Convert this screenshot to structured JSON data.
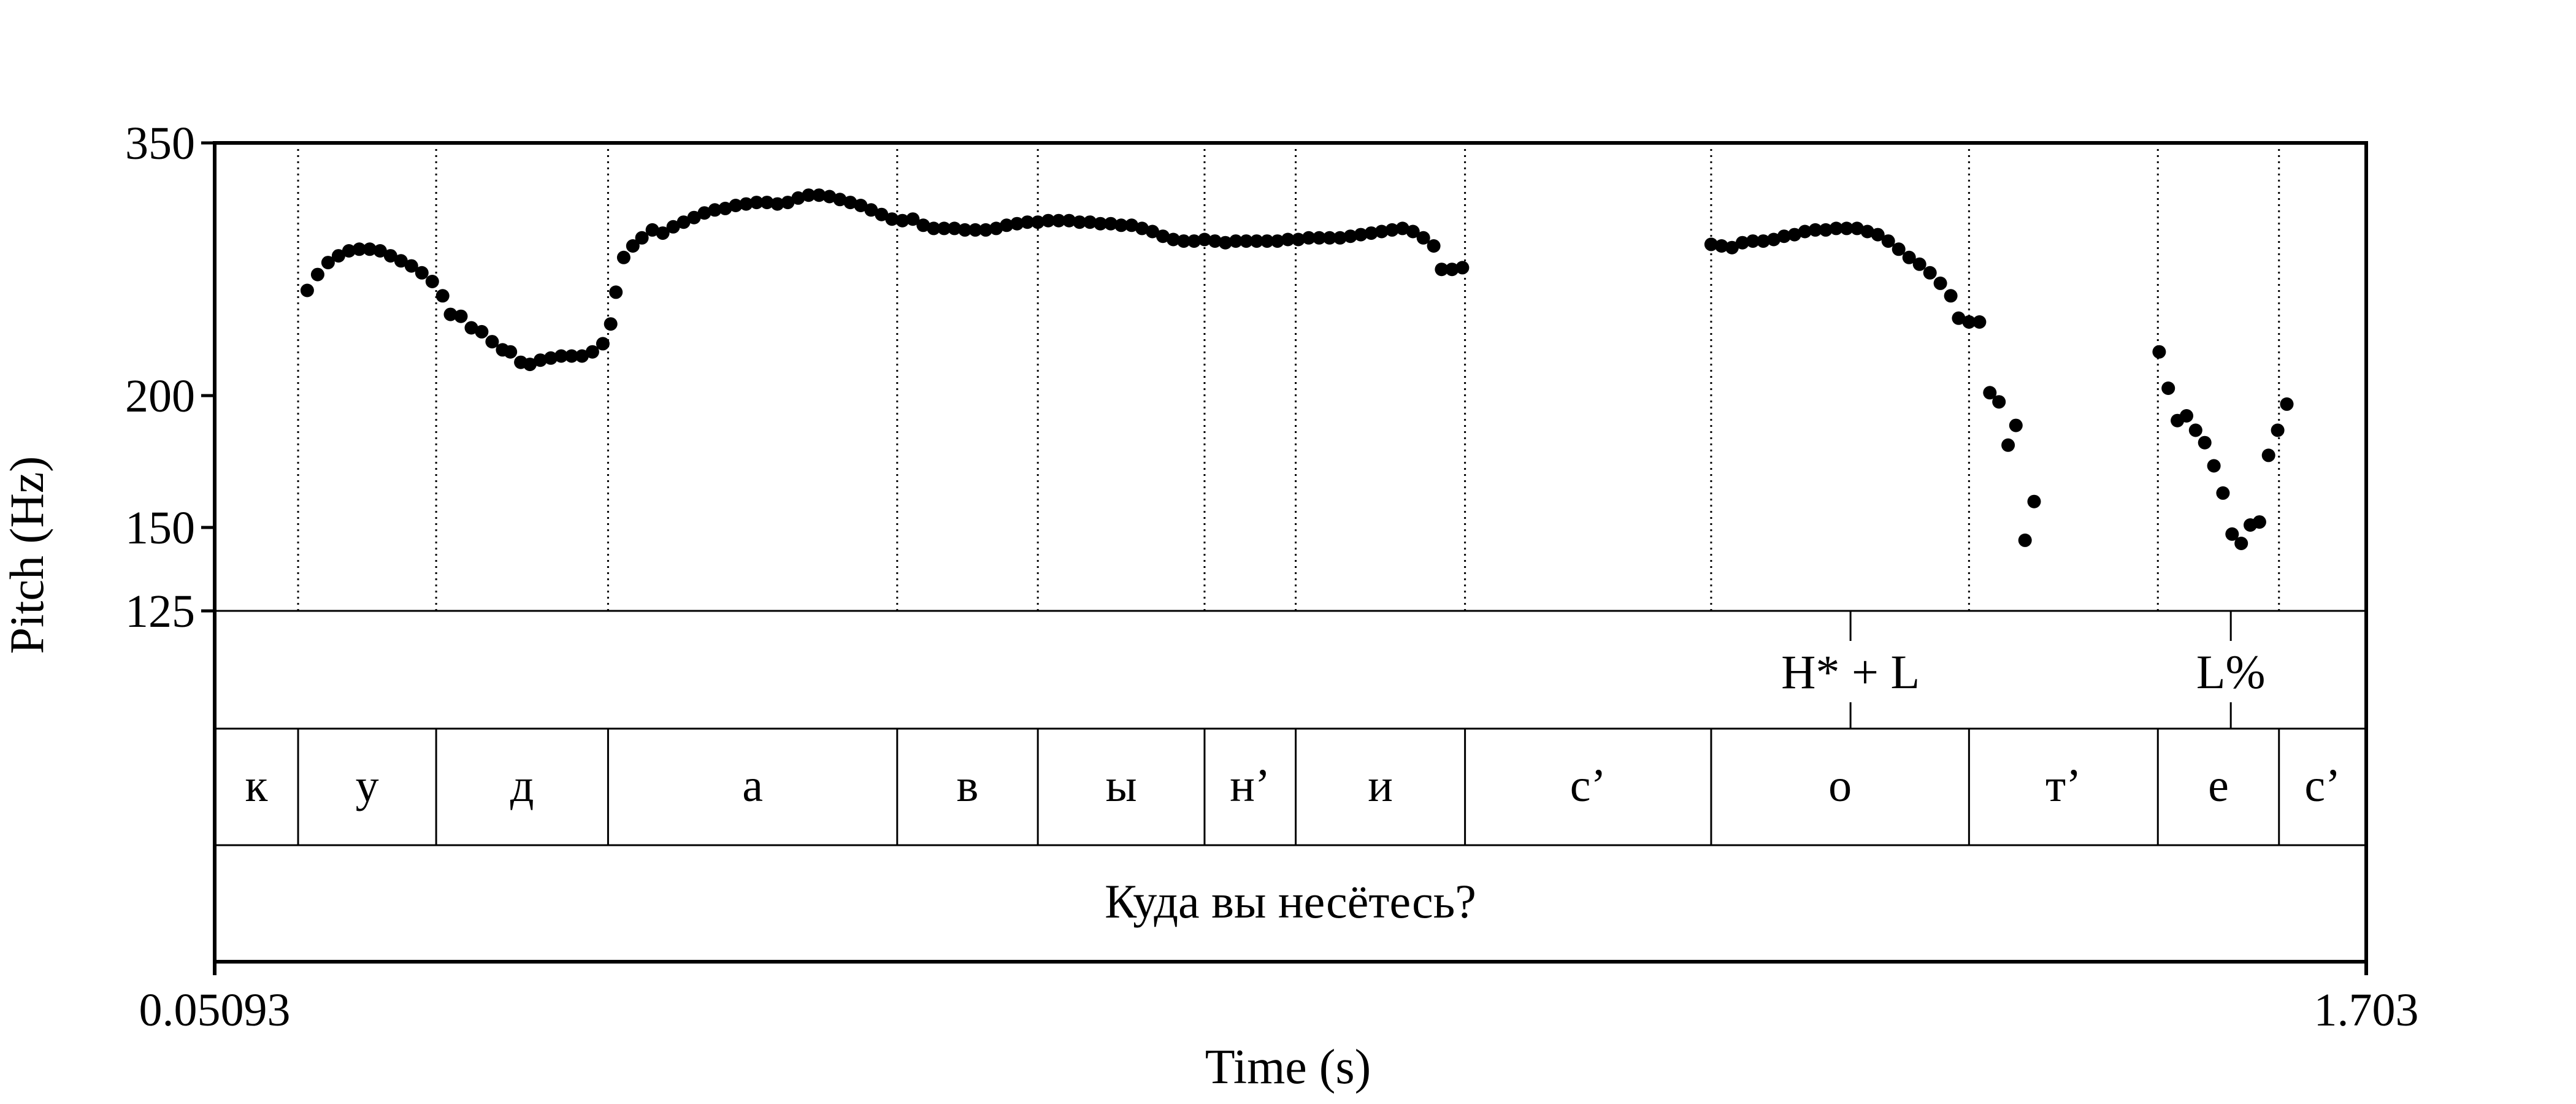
{
  "chart_data": {
    "type": "scatter",
    "x_axis": {
      "label": "Time (s)",
      "range": [
        0.05093,
        1.703
      ],
      "tick_labels": [
        "0.05093",
        "1.703"
      ],
      "scale": "linear"
    },
    "y_axis": {
      "label": "Pitch (Hz)",
      "range": [
        125,
        350
      ],
      "ticks": [
        125,
        150,
        200,
        350
      ],
      "tick_labels": [
        "125",
        "150",
        "200",
        "350"
      ],
      "scale": "log"
    },
    "grid": false,
    "segment_boundaries_s": [
      0.115,
      0.221,
      0.353,
      0.575,
      0.683,
      0.811,
      0.881,
      1.011,
      1.2,
      1.398,
      1.543,
      1.636
    ],
    "tone_tier": {
      "marks": [
        {
          "label": "H* + L",
          "time": 1.307
        },
        {
          "label": "L%",
          "time": 1.599
        }
      ]
    },
    "segment_tier": {
      "segments": [
        {
          "label": "к",
          "start": 0.05093,
          "end": 0.115
        },
        {
          "label": "у",
          "start": 0.115,
          "end": 0.221
        },
        {
          "label": "д",
          "start": 0.221,
          "end": 0.353
        },
        {
          "label": "а",
          "start": 0.353,
          "end": 0.575
        },
        {
          "label": "в",
          "start": 0.575,
          "end": 0.683
        },
        {
          "label": "ы",
          "start": 0.683,
          "end": 0.811
        },
        {
          "label": "н’",
          "start": 0.811,
          "end": 0.881
        },
        {
          "label": "и",
          "start": 0.881,
          "end": 1.011
        },
        {
          "label": "с’",
          "start": 1.011,
          "end": 1.2
        },
        {
          "label": "о",
          "start": 1.2,
          "end": 1.398
        },
        {
          "label": "т’",
          "start": 1.398,
          "end": 1.543
        },
        {
          "label": "е",
          "start": 1.543,
          "end": 1.636
        },
        {
          "label": "с’",
          "start": 1.636,
          "end": 1.703
        }
      ]
    },
    "sentence_tier": {
      "text": "Куда вы несётесь?"
    },
    "series": [
      {
        "points": [
          [
            0.122,
            253
          ],
          [
            0.13,
            262
          ],
          [
            0.138,
            269
          ],
          [
            0.146,
            273
          ],
          [
            0.154,
            276
          ],
          [
            0.162,
            277
          ],
          [
            0.17,
            277
          ],
          [
            0.178,
            276
          ],
          [
            0.186,
            273
          ],
          [
            0.194,
            270
          ],
          [
            0.202,
            267
          ],
          [
            0.21,
            263
          ],
          [
            0.218,
            258
          ],
          [
            0.226,
            250
          ],
          [
            0.232,
            240
          ],
          [
            0.24,
            239
          ],
          [
            0.248,
            233
          ],
          [
            0.256,
            231
          ],
          [
            0.264,
            226
          ],
          [
            0.272,
            222
          ],
          [
            0.278,
            221
          ],
          [
            0.286,
            216
          ],
          [
            0.293,
            215
          ],
          [
            0.301,
            217
          ],
          [
            0.309,
            218
          ],
          [
            0.317,
            219
          ],
          [
            0.325,
            219
          ],
          [
            0.333,
            219
          ],
          [
            0.341,
            221
          ],
          [
            0.349,
            225
          ],
          [
            0.355,
            235
          ],
          [
            0.359,
            252
          ],
          [
            0.365,
            272
          ],
          [
            0.372,
            279
          ],
          [
            0.379,
            284
          ],
          [
            0.387,
            289
          ],
          [
            0.395,
            287
          ],
          [
            0.403,
            291
          ],
          [
            0.411,
            294
          ],
          [
            0.419,
            297
          ],
          [
            0.427,
            300
          ],
          [
            0.435,
            302
          ],
          [
            0.443,
            303
          ],
          [
            0.451,
            305
          ],
          [
            0.459,
            306
          ],
          [
            0.467,
            307
          ],
          [
            0.475,
            307
          ],
          [
            0.483,
            306
          ],
          [
            0.491,
            307
          ],
          [
            0.499,
            310
          ],
          [
            0.507,
            312
          ],
          [
            0.515,
            312
          ],
          [
            0.523,
            311
          ],
          [
            0.531,
            309
          ],
          [
            0.539,
            307
          ],
          [
            0.547,
            305
          ],
          [
            0.555,
            302
          ],
          [
            0.563,
            299
          ],
          [
            0.571,
            296
          ],
          [
            0.579,
            295
          ],
          [
            0.587,
            296
          ],
          [
            0.595,
            292
          ],
          [
            0.603,
            290
          ],
          [
            0.611,
            290
          ],
          [
            0.619,
            290
          ],
          [
            0.627,
            289
          ],
          [
            0.635,
            289
          ],
          [
            0.643,
            289
          ],
          [
            0.651,
            290
          ],
          [
            0.659,
            292
          ],
          [
            0.667,
            293
          ],
          [
            0.675,
            294
          ],
          [
            0.683,
            294
          ],
          [
            0.691,
            295
          ],
          [
            0.699,
            295
          ],
          [
            0.707,
            295
          ],
          [
            0.715,
            294
          ],
          [
            0.723,
            294
          ],
          [
            0.731,
            293
          ],
          [
            0.739,
            293
          ],
          [
            0.747,
            292
          ],
          [
            0.755,
            292
          ],
          [
            0.763,
            290
          ],
          [
            0.771,
            288
          ],
          [
            0.779,
            285
          ],
          [
            0.787,
            283
          ],
          [
            0.795,
            282
          ],
          [
            0.803,
            282
          ],
          [
            0.811,
            283
          ],
          [
            0.819,
            282
          ],
          [
            0.827,
            281
          ],
          [
            0.835,
            282
          ],
          [
            0.843,
            282
          ],
          [
            0.851,
            282
          ],
          [
            0.859,
            282
          ],
          [
            0.867,
            282
          ],
          [
            0.875,
            283
          ],
          [
            0.883,
            283
          ],
          [
            0.891,
            284
          ],
          [
            0.899,
            284
          ],
          [
            0.907,
            284
          ],
          [
            0.915,
            284
          ],
          [
            0.923,
            285
          ],
          [
            0.931,
            286
          ],
          [
            0.939,
            287
          ],
          [
            0.947,
            288
          ],
          [
            0.955,
            289
          ],
          [
            0.963,
            290
          ],
          [
            0.971,
            288
          ],
          [
            0.979,
            284
          ],
          [
            0.987,
            279
          ],
          [
            0.993,
            265
          ],
          [
            1.001,
            265
          ],
          [
            1.009,
            266
          ],
          [
            1.2,
            280
          ],
          [
            1.208,
            279
          ],
          [
            1.216,
            278
          ],
          [
            1.224,
            281
          ],
          [
            1.232,
            282
          ],
          [
            1.24,
            282
          ],
          [
            1.248,
            283
          ],
          [
            1.256,
            285
          ],
          [
            1.264,
            286
          ],
          [
            1.272,
            288
          ],
          [
            1.28,
            289
          ],
          [
            1.288,
            289
          ],
          [
            1.296,
            290
          ],
          [
            1.304,
            290
          ],
          [
            1.312,
            290
          ],
          [
            1.32,
            288
          ],
          [
            1.328,
            286
          ],
          [
            1.336,
            282
          ],
          [
            1.344,
            277
          ],
          [
            1.352,
            272
          ],
          [
            1.36,
            268
          ],
          [
            1.368,
            263
          ],
          [
            1.376,
            257
          ],
          [
            1.384,
            250
          ],
          [
            1.39,
            238
          ],
          [
            1.398,
            236
          ],
          [
            1.406,
            236
          ],
          [
            1.414,
            202
          ],
          [
            1.421,
            198
          ],
          [
            1.428,
            180
          ],
          [
            1.434,
            188
          ],
          [
            1.441,
            146
          ],
          [
            1.448,
            159
          ],
          [
            1.544,
            221
          ],
          [
            1.551,
            204
          ],
          [
            1.558,
            190
          ],
          [
            1.565,
            192
          ],
          [
            1.572,
            186
          ],
          [
            1.579,
            181
          ],
          [
            1.586,
            172
          ],
          [
            1.593,
            162
          ],
          [
            1.6,
            148
          ],
          [
            1.607,
            145
          ],
          [
            1.614,
            151
          ],
          [
            1.621,
            152
          ],
          [
            1.628,
            176
          ],
          [
            1.635,
            186
          ],
          [
            1.642,
            197
          ]
        ]
      }
    ]
  }
}
